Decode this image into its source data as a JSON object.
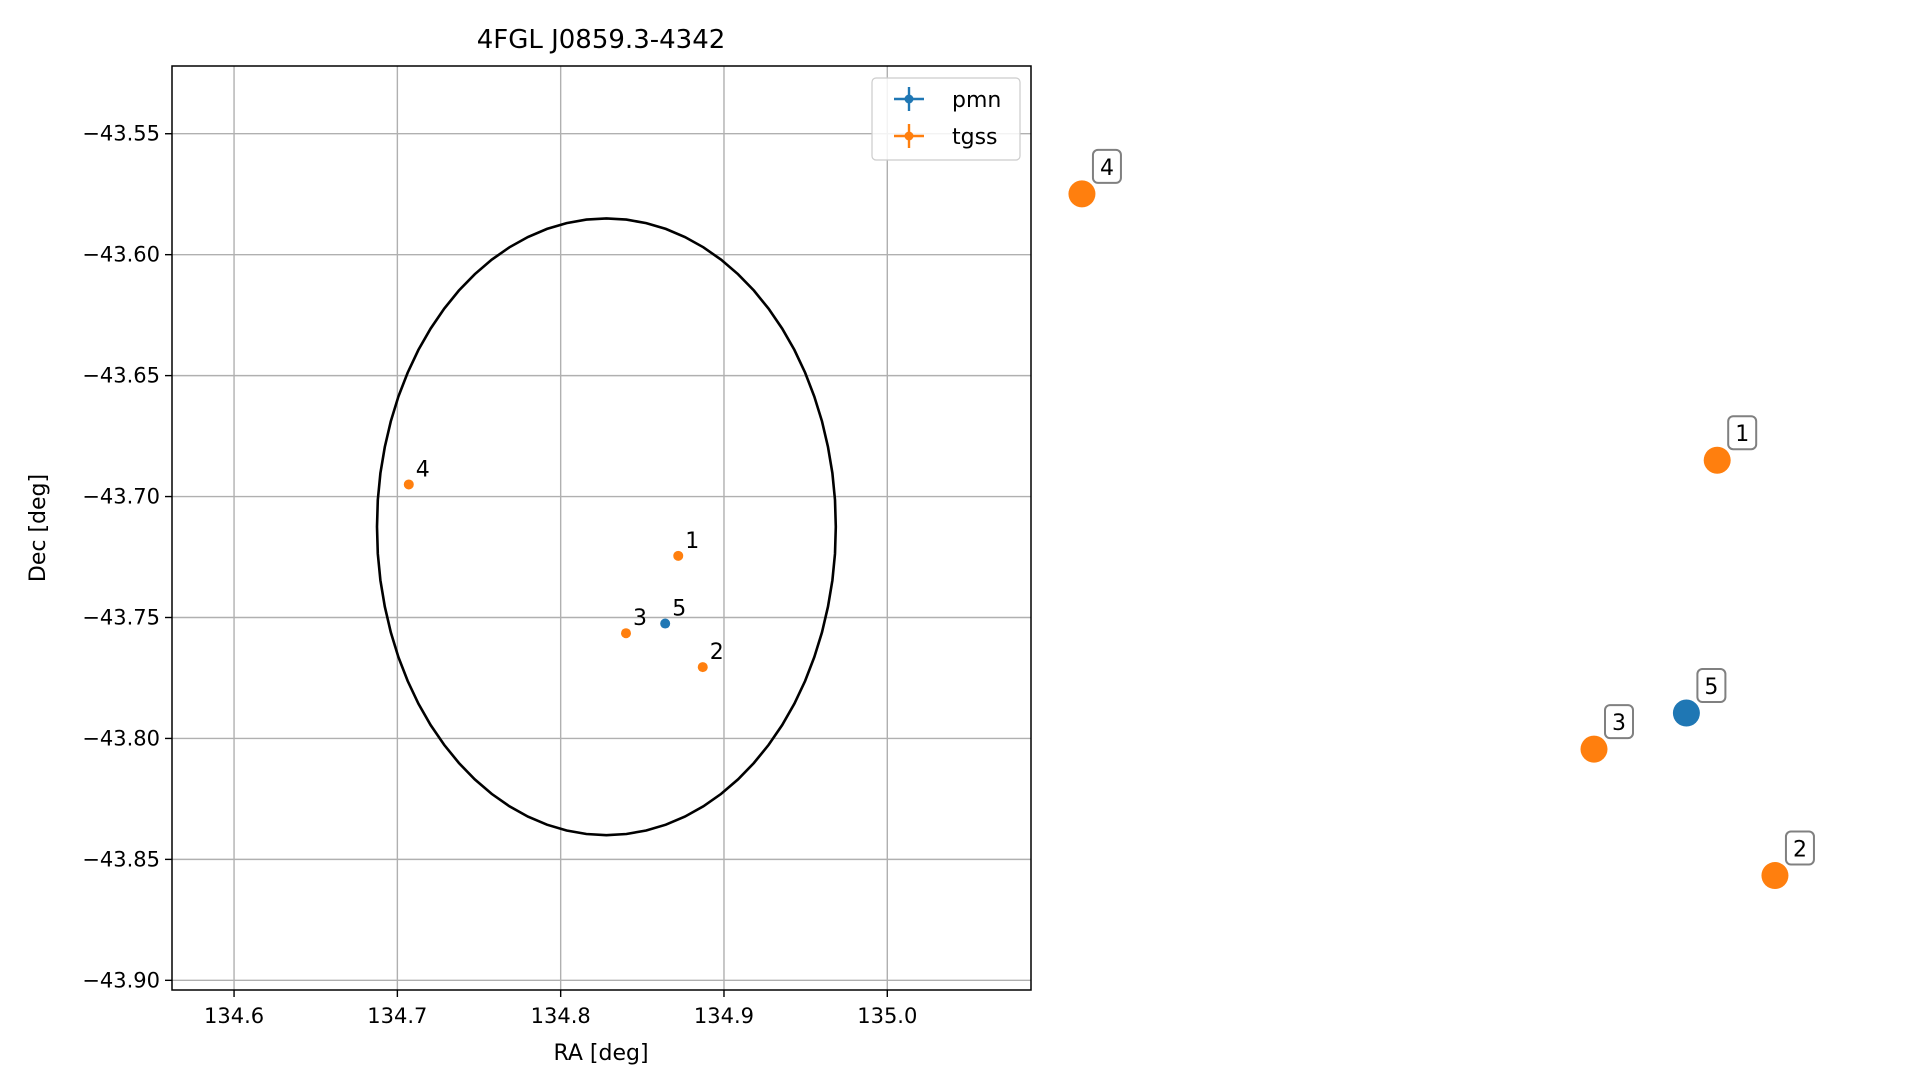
{
  "chart_data": [
    {
      "type": "scatter",
      "title": "4FGL J0859.3-4342",
      "xlabel": "RA [deg]",
      "ylabel": "Dec [deg]",
      "xlim": [
        134.562,
        135.088
      ],
      "ylim": [
        -43.904,
        -43.522
      ],
      "xticks": [
        134.6,
        134.7,
        134.8,
        134.9,
        135.0
      ],
      "xtick_labels": [
        "134.6",
        "134.7",
        "134.8",
        "134.9",
        "135.0"
      ],
      "yticks": [
        -43.55,
        -43.6,
        -43.65,
        -43.7,
        -43.75,
        -43.8,
        -43.85,
        -43.9
      ],
      "ytick_labels": [
        "−43.55",
        "−43.60",
        "−43.65",
        "−43.70",
        "−43.75",
        "−43.80",
        "−43.85",
        "−43.90"
      ],
      "grid": true,
      "legend_position": "top-right",
      "series": [
        {
          "name": "pmn",
          "color": "#1f77b4",
          "points": [
            {
              "id": "5",
              "x": 134.864,
              "y": -43.7525
            }
          ]
        },
        {
          "name": "tgss",
          "color": "#ff7f0e",
          "points": [
            {
              "id": "1",
              "x": 134.872,
              "y": -43.7245
            },
            {
              "id": "2",
              "x": 134.887,
              "y": -43.7705
            },
            {
              "id": "3",
              "x": 134.84,
              "y": -43.7565
            },
            {
              "id": "4",
              "x": 134.707,
              "y": -43.695
            }
          ]
        }
      ],
      "ellipse": {
        "center": [
          134.828,
          -43.7125
        ],
        "ra_semi_axis": 0.1405,
        "dec_semi_axis": 0.1275,
        "color": "#000000"
      }
    },
    {
      "type": "scatter",
      "title": "",
      "axes_visible": false,
      "series": [
        {
          "name": "tgss",
          "color": "#ff7f0e",
          "points": [
            {
              "id": "1",
              "x": 134.872,
              "y": -43.7245
            },
            {
              "id": "2",
              "x": 134.887,
              "y": -43.7705
            },
            {
              "id": "3",
              "x": 134.84,
              "y": -43.7565
            },
            {
              "id": "4",
              "x": 134.707,
              "y": -43.695
            }
          ]
        },
        {
          "name": "pmn",
          "color": "#1f77b4",
          "points": [
            {
              "id": "5",
              "x": 134.864,
              "y": -43.7525
            }
          ]
        }
      ]
    }
  ]
}
